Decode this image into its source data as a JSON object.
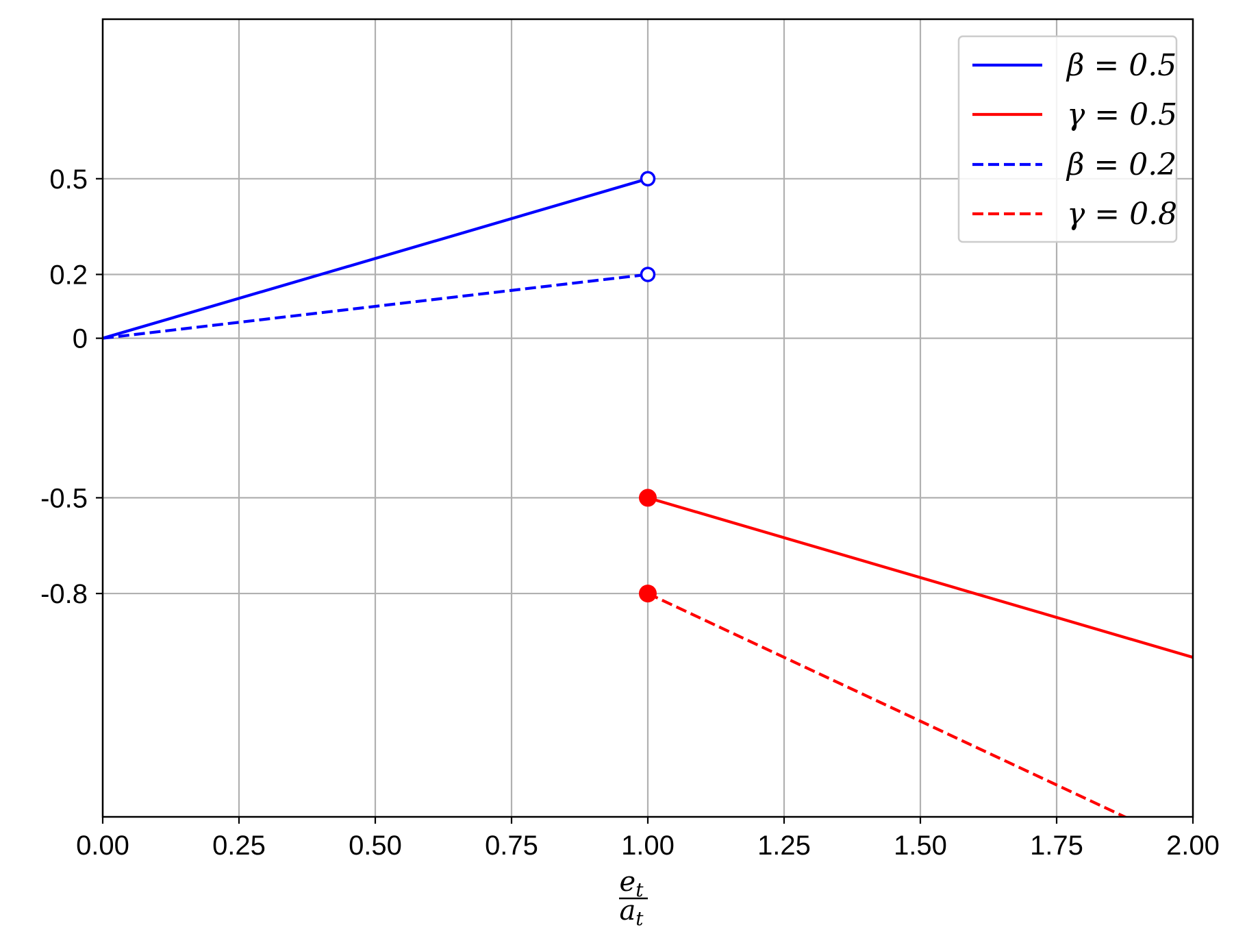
{
  "chart_data": {
    "type": "line",
    "xlim": [
      0,
      2
    ],
    "ylim": [
      -1.5,
      1.0
    ],
    "x_ticks": [
      0,
      0.25,
      0.5,
      0.75,
      1.0,
      1.25,
      1.5,
      1.75,
      2.0
    ],
    "x_tick_labels": [
      "0.00",
      "0.25",
      "0.50",
      "0.75",
      "1.00",
      "1.25",
      "1.50",
      "1.75",
      "2.00"
    ],
    "y_ticks": [
      0.5,
      0.2,
      0,
      -0.5,
      -0.8
    ],
    "y_tick_labels": [
      "0.5",
      "0.2",
      "0",
      "-0.5",
      "-0.8"
    ],
    "xlabel": {
      "numerator": "e",
      "numerator_sub": "t",
      "denominator": "a",
      "denominator_sub": "t"
    },
    "ylabel": "",
    "grid": true,
    "legend_position": "top-right",
    "series": [
      {
        "name": "β = 0.5",
        "color": "#0000ff",
        "style": "solid",
        "x": [
          0,
          1.0
        ],
        "y": [
          0,
          0.5
        ],
        "end_marker": {
          "x": 1.0,
          "y": 0.5,
          "fill": "open"
        }
      },
      {
        "name": "γ = 0.5",
        "color": "#ff0000",
        "style": "solid",
        "x": [
          1.0,
          2.0
        ],
        "y": [
          -0.5,
          -1.0
        ],
        "start_marker": {
          "x": 1.0,
          "y": -0.5,
          "fill": "filled"
        }
      },
      {
        "name": "β = 0.2",
        "color": "#0000ff",
        "style": "dashed",
        "x": [
          0,
          1.0
        ],
        "y": [
          0,
          0.2
        ],
        "end_marker": {
          "x": 1.0,
          "y": 0.2,
          "fill": "open"
        }
      },
      {
        "name": "γ = 0.8",
        "color": "#ff0000",
        "style": "dashed",
        "x": [
          1.0,
          2.0
        ],
        "y": [
          -0.8,
          -1.6
        ],
        "start_marker": {
          "x": 1.0,
          "y": -0.8,
          "fill": "filled"
        }
      }
    ]
  }
}
